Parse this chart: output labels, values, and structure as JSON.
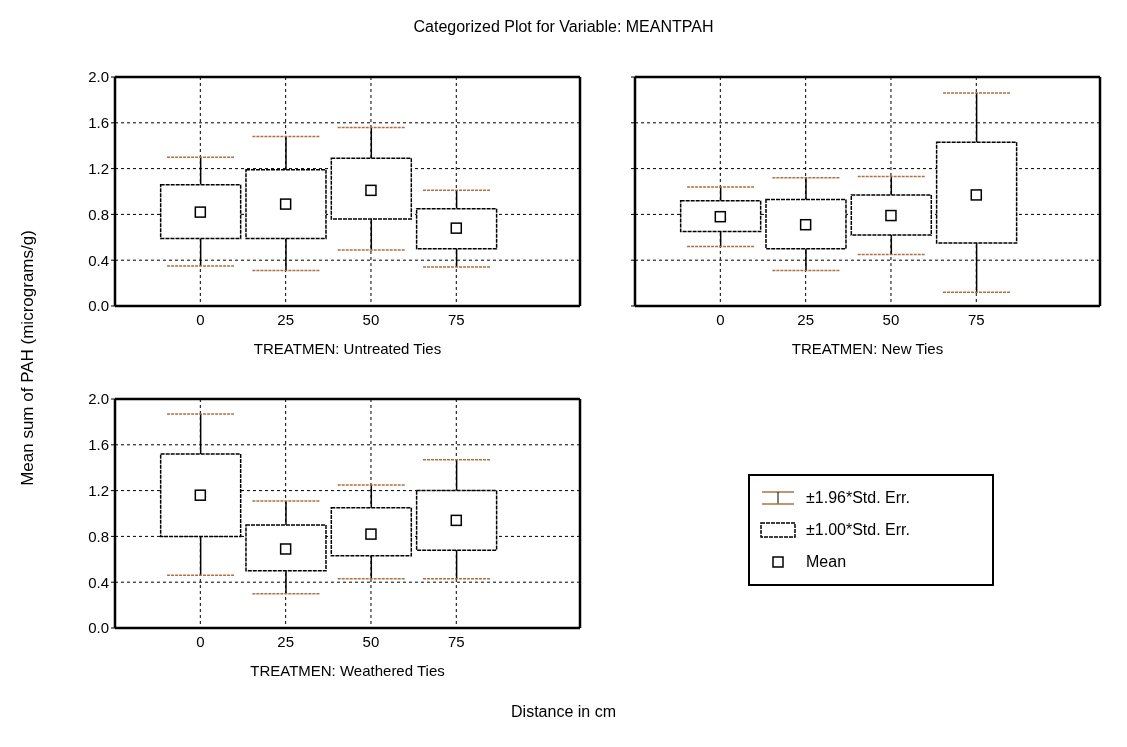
{
  "chart_data": [
    {
      "type": "box",
      "title": "Categorized Plot for Variable: MEANTPAH",
      "ylabel": "Mean sum of PAH (micrograms/g)",
      "annotations": [
        "Distance in cm"
      ],
      "xlabel": "TREATMEN: Untreated Ties",
      "categories": [
        "0",
        "25",
        "50",
        "75"
      ],
      "boxes": [
        {
          "low": 0.35,
          "q1": 0.59,
          "q3": 1.06,
          "high": 1.3,
          "mean": 0.82
        },
        {
          "low": 0.31,
          "q1": 0.59,
          "q3": 1.19,
          "high": 1.48,
          "mean": 0.89
        },
        {
          "low": 0.49,
          "q1": 0.76,
          "q3": 1.29,
          "high": 1.56,
          "mean": 1.01
        },
        {
          "low": 0.34,
          "q1": 0.5,
          "q3": 0.85,
          "high": 1.01,
          "mean": 0.68
        }
      ],
      "ylim": [
        0,
        2
      ],
      "yticks": [
        {
          "value": 0,
          "label": "0.0"
        },
        0.4,
        0.8,
        1.2,
        1.6,
        {
          "value": 2,
          "label": "2.0"
        }
      ],
      "grid": true
    },
    {
      "type": "box",
      "xlabel": "TREATMEN: New Ties",
      "categories": [
        "0",
        "25",
        "50",
        "75"
      ],
      "boxes": [
        {
          "low": 0.52,
          "q1": 0.65,
          "q3": 0.92,
          "high": 1.04,
          "mean": 0.78
        },
        {
          "low": 0.31,
          "q1": 0.5,
          "q3": 0.93,
          "high": 1.12,
          "mean": 0.71
        },
        {
          "low": 0.45,
          "q1": 0.62,
          "q3": 0.97,
          "high": 1.13,
          "mean": 0.79
        },
        {
          "low": 0.12,
          "q1": 0.55,
          "q3": 1.43,
          "high": 1.86,
          "mean": 0.97
        }
      ],
      "ylim": [
        0,
        2
      ],
      "yticks": [
        {
          "value": 0,
          "label": null
        },
        {
          "value": 0.4,
          "label": null
        },
        {
          "value": 0.8,
          "label": null
        },
        {
          "value": 1.2,
          "label": null
        },
        {
          "value": 1.6,
          "label": null
        },
        {
          "value": 2,
          "label": null
        }
      ],
      "grid": true,
      "tick_labels": "x"
    },
    {
      "type": "box",
      "xlabel": "TREATMEN: Weathered Ties",
      "categories": [
        "0",
        "25",
        "50",
        "75"
      ],
      "boxes": [
        {
          "low": 0.46,
          "q1": 0.8,
          "q3": 1.52,
          "high": 1.87,
          "mean": 1.16
        },
        {
          "low": 0.3,
          "q1": 0.5,
          "q3": 0.9,
          "high": 1.11,
          "mean": 0.69
        },
        {
          "low": 0.43,
          "q1": 0.63,
          "q3": 1.05,
          "high": 1.25,
          "mean": 0.82
        },
        {
          "low": 0.43,
          "q1": 0.68,
          "q3": 1.2,
          "high": 1.47,
          "mean": 0.94
        }
      ],
      "ylim": [
        0,
        2
      ],
      "yticks": [
        {
          "value": 0,
          "label": "0.0"
        },
        0.4,
        0.8,
        1.2,
        1.6,
        {
          "value": 2,
          "label": "2.0"
        }
      ],
      "grid": true
    },
    {
      "type": "other",
      "annotations": [
        "±1.96*Std. Err.",
        "±1.00*Std. Err.",
        "Mean"
      ]
    }
  ]
}
